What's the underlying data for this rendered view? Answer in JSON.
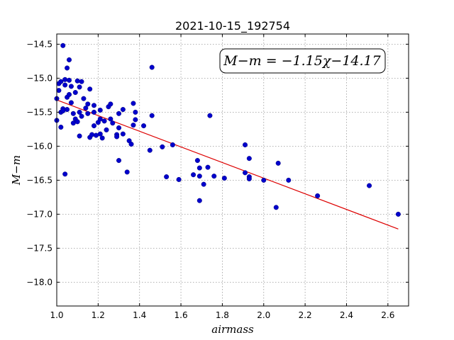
{
  "chart_data": {
    "type": "scatter",
    "title": "2021-10-15_192754",
    "xlabel": "airmass",
    "ylabel": "M−m",
    "xlim": [
      1.0,
      2.7
    ],
    "ylim": [
      -18.35,
      -14.35
    ],
    "x_ticks": [
      "1.0",
      "1.2",
      "1.4",
      "1.6",
      "1.8",
      "2.0",
      "2.2",
      "2.4",
      "2.6"
    ],
    "y_ticks": [
      "−14.5",
      "−15.0",
      "−15.5",
      "−16.0",
      "−16.5",
      "−17.0",
      "−17.5",
      "−18.0"
    ],
    "grid": true,
    "annotation": "M−m = −1.15χ−14.17",
    "colors": {
      "points": "#0000cc",
      "fit_line": "#dd0000",
      "grid": "#999999"
    },
    "fit": {
      "slope": -1.15,
      "intercept": -14.17,
      "x_range": [
        1.0,
        2.65
      ]
    },
    "points": [
      {
        "x": 1.0,
        "y": -15.3
      },
      {
        "x": 1.0,
        "y": -15.62
      },
      {
        "x": 1.01,
        "y": -15.08
      },
      {
        "x": 1.01,
        "y": -15.18
      },
      {
        "x": 1.02,
        "y": -15.05
      },
      {
        "x": 1.02,
        "y": -15.5
      },
      {
        "x": 1.02,
        "y": -15.72
      },
      {
        "x": 1.03,
        "y": -14.52
      },
      {
        "x": 1.03,
        "y": -15.45
      },
      {
        "x": 1.03,
        "y": -15.48
      },
      {
        "x": 1.04,
        "y": -15.02
      },
      {
        "x": 1.04,
        "y": -15.1
      },
      {
        "x": 1.04,
        "y": -16.41
      },
      {
        "x": 1.05,
        "y": -14.85
      },
      {
        "x": 1.05,
        "y": -15.28
      },
      {
        "x": 1.05,
        "y": -15.46
      },
      {
        "x": 1.06,
        "y": -14.73
      },
      {
        "x": 1.06,
        "y": -15.03
      },
      {
        "x": 1.06,
        "y": -15.24
      },
      {
        "x": 1.07,
        "y": -15.12
      },
      {
        "x": 1.07,
        "y": -15.36
      },
      {
        "x": 1.08,
        "y": -15.52
      },
      {
        "x": 1.08,
        "y": -15.66
      },
      {
        "x": 1.09,
        "y": -15.21
      },
      {
        "x": 1.09,
        "y": -15.6
      },
      {
        "x": 1.1,
        "y": -15.04
      },
      {
        "x": 1.1,
        "y": -15.64
      },
      {
        "x": 1.11,
        "y": -15.5
      },
      {
        "x": 1.11,
        "y": -15.13
      },
      {
        "x": 1.11,
        "y": -15.85
      },
      {
        "x": 1.12,
        "y": -15.56
      },
      {
        "x": 1.12,
        "y": -15.05
      },
      {
        "x": 1.13,
        "y": -15.3
      },
      {
        "x": 1.14,
        "y": -15.44
      },
      {
        "x": 1.15,
        "y": -15.38
      },
      {
        "x": 1.15,
        "y": -15.52
      },
      {
        "x": 1.16,
        "y": -15.16
      },
      {
        "x": 1.16,
        "y": -15.87
      },
      {
        "x": 1.17,
        "y": -15.83
      },
      {
        "x": 1.18,
        "y": -15.4
      },
      {
        "x": 1.18,
        "y": -15.5
      },
      {
        "x": 1.18,
        "y": -15.7
      },
      {
        "x": 1.19,
        "y": -15.84
      },
      {
        "x": 1.2,
        "y": -15.65
      },
      {
        "x": 1.21,
        "y": -15.47
      },
      {
        "x": 1.21,
        "y": -15.6
      },
      {
        "x": 1.21,
        "y": -15.82
      },
      {
        "x": 1.22,
        "y": -15.88
      },
      {
        "x": 1.23,
        "y": -15.63
      },
      {
        "x": 1.24,
        "y": -15.76
      },
      {
        "x": 1.25,
        "y": -15.42
      },
      {
        "x": 1.26,
        "y": -15.38
      },
      {
        "x": 1.26,
        "y": -15.6
      },
      {
        "x": 1.27,
        "y": -15.66
      },
      {
        "x": 1.29,
        "y": -15.83
      },
      {
        "x": 1.29,
        "y": -15.86
      },
      {
        "x": 1.3,
        "y": -15.52
      },
      {
        "x": 1.3,
        "y": -15.73
      },
      {
        "x": 1.3,
        "y": -16.21
      },
      {
        "x": 1.32,
        "y": -15.46
      },
      {
        "x": 1.32,
        "y": -15.82
      },
      {
        "x": 1.34,
        "y": -16.38
      },
      {
        "x": 1.35,
        "y": -15.92
      },
      {
        "x": 1.36,
        "y": -15.97
      },
      {
        "x": 1.37,
        "y": -15.69
      },
      {
        "x": 1.37,
        "y": -15.37
      },
      {
        "x": 1.38,
        "y": -15.61
      },
      {
        "x": 1.38,
        "y": -15.5
      },
      {
        "x": 1.42,
        "y": -15.7
      },
      {
        "x": 1.45,
        "y": -16.06
      },
      {
        "x": 1.46,
        "y": -14.84
      },
      {
        "x": 1.46,
        "y": -15.55
      },
      {
        "x": 1.51,
        "y": -16.01
      },
      {
        "x": 1.53,
        "y": -16.45
      },
      {
        "x": 1.56,
        "y": -15.98
      },
      {
        "x": 1.59,
        "y": -16.49
      },
      {
        "x": 1.66,
        "y": -16.42
      },
      {
        "x": 1.68,
        "y": -16.21
      },
      {
        "x": 1.69,
        "y": -16.32
      },
      {
        "x": 1.69,
        "y": -16.44
      },
      {
        "x": 1.69,
        "y": -16.8
      },
      {
        "x": 1.71,
        "y": -16.56
      },
      {
        "x": 1.73,
        "y": -16.31
      },
      {
        "x": 1.74,
        "y": -15.55
      },
      {
        "x": 1.76,
        "y": -16.44
      },
      {
        "x": 1.81,
        "y": -16.47
      },
      {
        "x": 1.91,
        "y": -15.98
      },
      {
        "x": 1.91,
        "y": -16.39
      },
      {
        "x": 1.93,
        "y": -16.18
      },
      {
        "x": 1.93,
        "y": -16.45
      },
      {
        "x": 1.93,
        "y": -16.48
      },
      {
        "x": 2.0,
        "y": -16.5
      },
      {
        "x": 2.06,
        "y": -16.9
      },
      {
        "x": 2.07,
        "y": -16.25
      },
      {
        "x": 2.12,
        "y": -16.5
      },
      {
        "x": 2.26,
        "y": -16.73
      },
      {
        "x": 2.51,
        "y": -16.58
      },
      {
        "x": 2.65,
        "y": -17.0
      }
    ]
  }
}
